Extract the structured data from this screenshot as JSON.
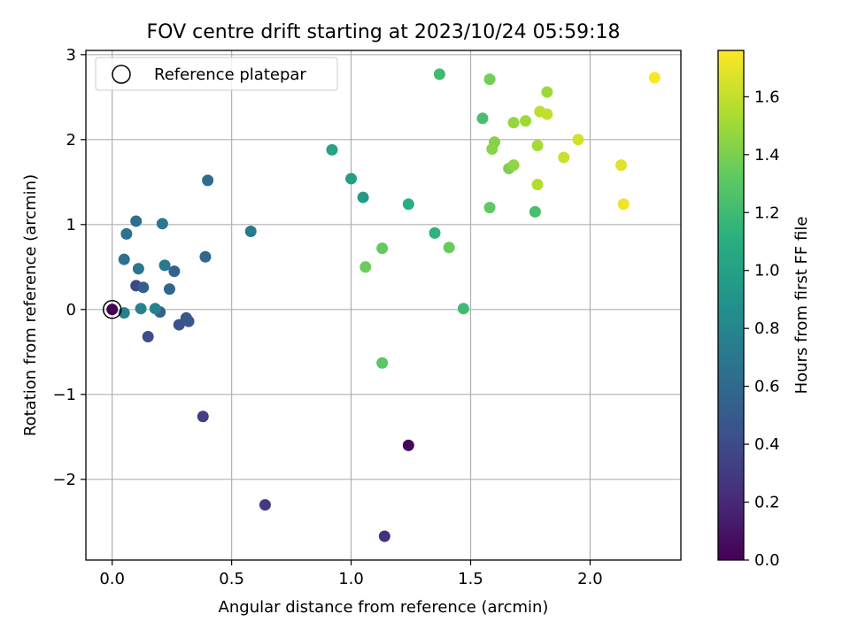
{
  "chart_data": {
    "type": "scatter",
    "title": "FOV centre drift starting at 2023/10/24 05:59:18",
    "xlabel": "Angular distance from reference (arcmin)",
    "ylabel": "Rotation from reference (arcmin)",
    "xlim": [
      -0.11,
      2.38
    ],
    "ylim": [
      -2.95,
      3.05
    ],
    "xticks": [
      0.0,
      0.5,
      1.0,
      1.5,
      2.0
    ],
    "xtick_labels": [
      "0.0",
      "0.5",
      "1.0",
      "1.5",
      "2.0"
    ],
    "yticks": [
      -2,
      -1,
      0,
      1,
      2,
      3
    ],
    "ytick_labels": [
      "−2",
      "−1",
      "0",
      "1",
      "2",
      "3"
    ],
    "grid": true,
    "legend": {
      "position": "top-left",
      "entries": [
        "Reference platepar"
      ]
    },
    "reference_point": {
      "x": 0.0,
      "y": 0.0
    },
    "colorbar": {
      "label": "Hours from first FF file",
      "colormap": "viridis",
      "range": [
        0.0,
        1.76
      ],
      "ticks": [
        0.0,
        0.2,
        0.4,
        0.6,
        0.8,
        1.0,
        1.2,
        1.4,
        1.6
      ],
      "tick_labels": [
        "0.0",
        "0.2",
        "0.4",
        "0.6",
        "0.8",
        "1.0",
        "1.2",
        "1.4",
        "1.6"
      ]
    },
    "points": [
      {
        "x": 0.0,
        "y": 0.0,
        "c": 0.0
      },
      {
        "x": 1.24,
        "y": -1.6,
        "c": 0.02
      },
      {
        "x": 1.14,
        "y": -2.67,
        "c": 0.25
      },
      {
        "x": 0.64,
        "y": -2.3,
        "c": 0.3
      },
      {
        "x": 0.38,
        "y": -1.26,
        "c": 0.32
      },
      {
        "x": 0.1,
        "y": 0.28,
        "c": 0.38
      },
      {
        "x": 0.15,
        "y": -0.32,
        "c": 0.42
      },
      {
        "x": 0.28,
        "y": -0.18,
        "c": 0.45
      },
      {
        "x": 0.31,
        "y": -0.1,
        "c": 0.47
      },
      {
        "x": 0.32,
        "y": -0.14,
        "c": 0.48
      },
      {
        "x": 0.13,
        "y": 0.26,
        "c": 0.52
      },
      {
        "x": 0.2,
        "y": -0.03,
        "c": 0.55
      },
      {
        "x": 0.26,
        "y": 0.45,
        "c": 0.56
      },
      {
        "x": 0.24,
        "y": 0.24,
        "c": 0.58
      },
      {
        "x": 0.39,
        "y": 0.62,
        "c": 0.6
      },
      {
        "x": 0.4,
        "y": 1.52,
        "c": 0.62
      },
      {
        "x": 0.1,
        "y": 1.04,
        "c": 0.63
      },
      {
        "x": 0.06,
        "y": 0.89,
        "c": 0.65
      },
      {
        "x": 0.05,
        "y": 0.59,
        "c": 0.66
      },
      {
        "x": 0.11,
        "y": 0.48,
        "c": 0.68
      },
      {
        "x": 0.21,
        "y": 1.01,
        "c": 0.7
      },
      {
        "x": 0.22,
        "y": 0.52,
        "c": 0.72
      },
      {
        "x": 0.05,
        "y": -0.04,
        "c": 0.75
      },
      {
        "x": 0.12,
        "y": 0.01,
        "c": 0.77
      },
      {
        "x": 0.18,
        "y": 0.01,
        "c": 0.78
      },
      {
        "x": 0.58,
        "y": 0.92,
        "c": 0.72
      },
      {
        "x": 1.05,
        "y": 1.32,
        "c": 0.95
      },
      {
        "x": 1.0,
        "y": 1.54,
        "c": 0.98
      },
      {
        "x": 0.92,
        "y": 1.88,
        "c": 1.02
      },
      {
        "x": 1.24,
        "y": 1.24,
        "c": 1.1
      },
      {
        "x": 1.35,
        "y": 0.9,
        "c": 1.13
      },
      {
        "x": 1.47,
        "y": 0.01,
        "c": 1.2
      },
      {
        "x": 1.37,
        "y": 2.77,
        "c": 1.2
      },
      {
        "x": 1.55,
        "y": 2.25,
        "c": 1.23
      },
      {
        "x": 1.58,
        "y": 1.2,
        "c": 1.32
      },
      {
        "x": 1.41,
        "y": 0.73,
        "c": 1.34
      },
      {
        "x": 1.13,
        "y": 0.72,
        "c": 1.33
      },
      {
        "x": 1.13,
        "y": -0.63,
        "c": 1.3
      },
      {
        "x": 1.06,
        "y": 0.5,
        "c": 1.36
      },
      {
        "x": 1.77,
        "y": 1.15,
        "c": 1.23
      },
      {
        "x": 1.58,
        "y": 2.71,
        "c": 1.38
      },
      {
        "x": 1.66,
        "y": 1.66,
        "c": 1.4
      },
      {
        "x": 1.6,
        "y": 1.97,
        "c": 1.42
      },
      {
        "x": 1.59,
        "y": 1.89,
        "c": 1.44
      },
      {
        "x": 1.68,
        "y": 1.7,
        "c": 1.46
      },
      {
        "x": 1.68,
        "y": 2.2,
        "c": 1.47
      },
      {
        "x": 1.73,
        "y": 2.22,
        "c": 1.5
      },
      {
        "x": 1.82,
        "y": 2.56,
        "c": 1.5
      },
      {
        "x": 1.78,
        "y": 1.93,
        "c": 1.52
      },
      {
        "x": 1.78,
        "y": 1.47,
        "c": 1.55
      },
      {
        "x": 1.79,
        "y": 2.33,
        "c": 1.58
      },
      {
        "x": 1.82,
        "y": 2.3,
        "c": 1.6
      },
      {
        "x": 1.89,
        "y": 1.79,
        "c": 1.62
      },
      {
        "x": 1.95,
        "y": 2.0,
        "c": 1.64
      },
      {
        "x": 2.13,
        "y": 1.7,
        "c": 1.68
      },
      {
        "x": 2.14,
        "y": 1.24,
        "c": 1.72
      },
      {
        "x": 2.27,
        "y": 2.73,
        "c": 1.75
      }
    ]
  }
}
